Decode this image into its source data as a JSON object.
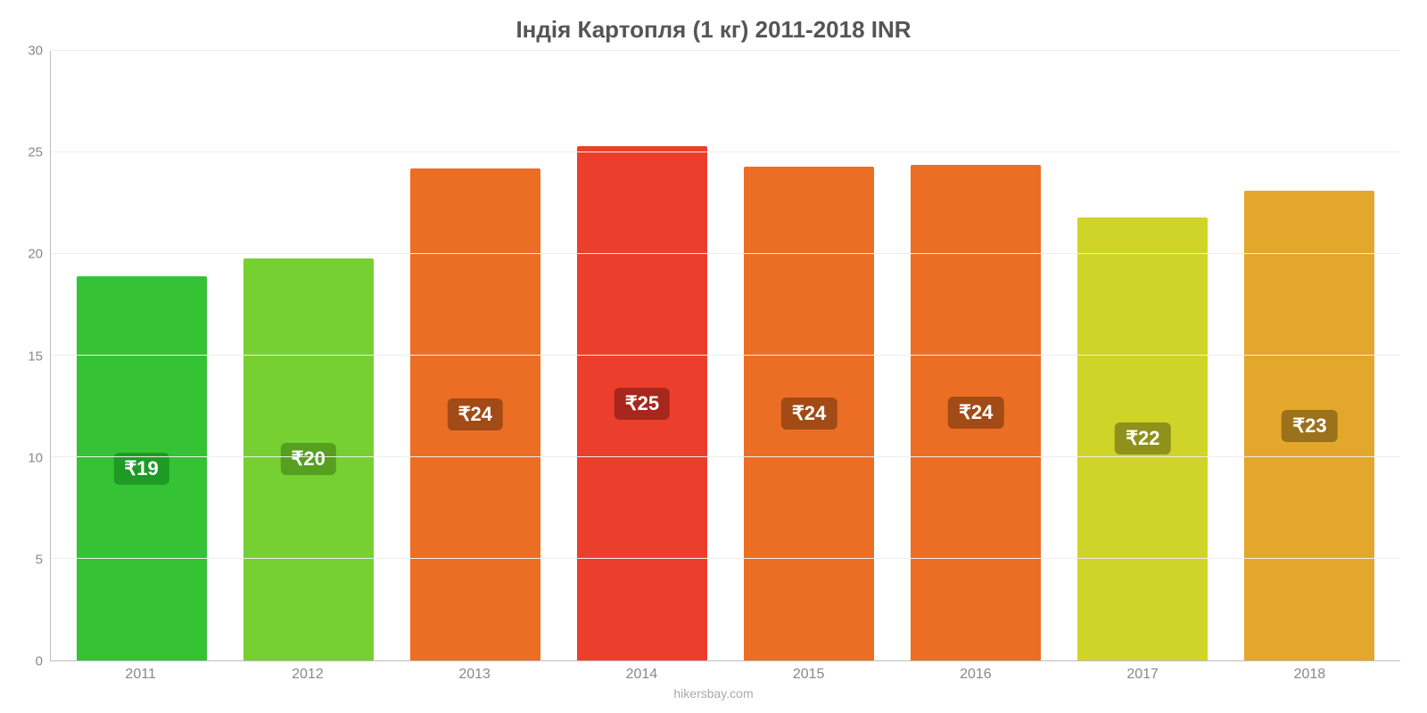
{
  "chart": {
    "type": "bar",
    "title": "Індія Картопля (1 кг) 2011-2018 INR",
    "title_fontsize": 26,
    "title_color": "#555555",
    "background_color": "#ffffff",
    "grid_color": "#ededed",
    "axis_color": "#bdbdbd",
    "tick_label_color": "#888888",
    "tick_fontsize": 15,
    "ylim": [
      0,
      30
    ],
    "ytick_step": 5,
    "yticks": [
      0,
      5,
      10,
      15,
      20,
      25,
      30
    ],
    "categories": [
      "2011",
      "2012",
      "2013",
      "2014",
      "2015",
      "2016",
      "2017",
      "2018"
    ],
    "values": [
      18.9,
      19.8,
      24.2,
      25.3,
      24.3,
      24.4,
      21.8,
      23.1
    ],
    "value_labels": [
      "₹19",
      "₹20",
      "₹24",
      "₹25",
      "₹24",
      "₹24",
      "₹22",
      "₹23"
    ],
    "bar_colors": [
      "#35c234",
      "#77d032",
      "#ec6e25",
      "#ec3e2c",
      "#ec6e25",
      "#ec6e25",
      "#d0d429",
      "#e3a72c"
    ],
    "label_bg_colors": [
      "#1f9a25",
      "#569f1f",
      "#a24b16",
      "#a7271c",
      "#a24b16",
      "#a24b16",
      "#8f911a",
      "#9c711b"
    ],
    "label_text_color": "#ffffff",
    "label_fontsize": 22,
    "bar_width_ratio": 0.78,
    "attribution": "hikersbay.com",
    "attribution_color": "#aaaaaa"
  }
}
